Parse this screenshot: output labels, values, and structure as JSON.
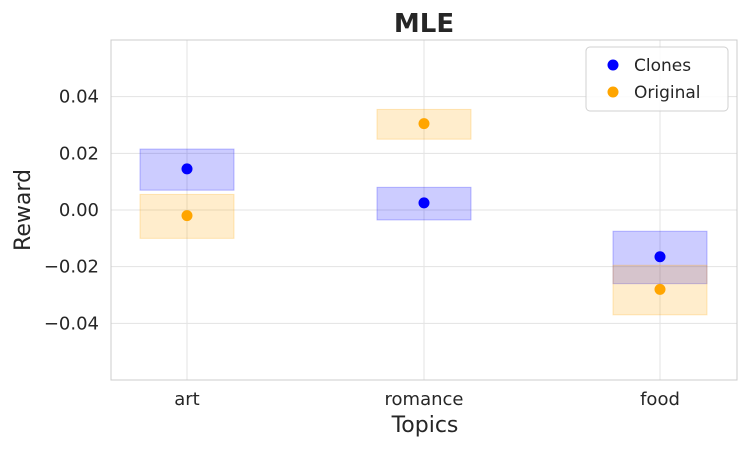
{
  "chart_data": {
    "type": "scatter",
    "title": "MLE",
    "xlabel": "Topics",
    "ylabel": "Reward",
    "categories": [
      "art",
      "romance",
      "food"
    ],
    "ylim": [
      -0.06,
      0.06
    ],
    "yticks": [
      0.04,
      0.02,
      0.0,
      -0.02,
      -0.04
    ],
    "ytick_labels": [
      "0.04",
      "0.02",
      "0.00",
      "−0.02",
      "−0.04"
    ],
    "grid": true,
    "legend_position": "top-right",
    "series": [
      {
        "name": "Clones",
        "color": "#0000ff",
        "values": [
          0.0145,
          0.0025,
          -0.0165
        ],
        "band_low": [
          0.007,
          -0.0035,
          -0.026
        ],
        "band_high": [
          0.0215,
          0.008,
          -0.0075
        ]
      },
      {
        "name": "Original",
        "color": "#ffa500",
        "values": [
          -0.002,
          0.0305,
          -0.028
        ],
        "band_low": [
          -0.01,
          0.025,
          -0.037
        ],
        "band_high": [
          0.0055,
          0.0355,
          -0.0195
        ]
      }
    ]
  }
}
